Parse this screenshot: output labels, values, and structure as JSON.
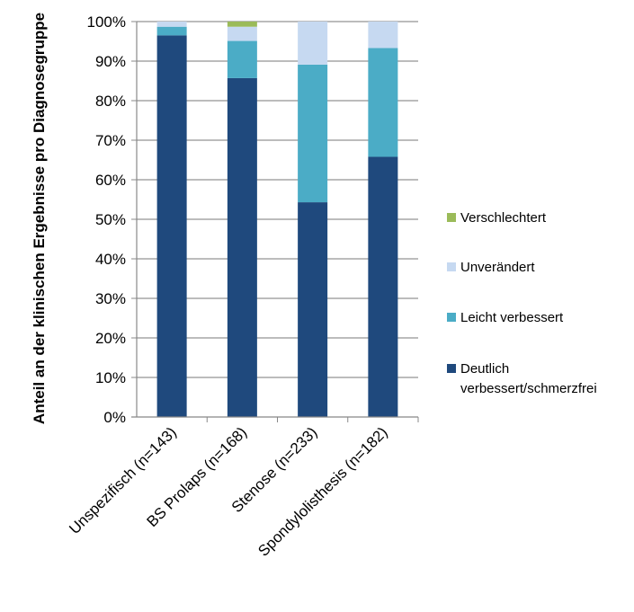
{
  "chart_data": {
    "type": "bar",
    "stacked": true,
    "categories": [
      "Unspezifisch (n=143)",
      "BS Prolaps (n=168)",
      "Stenose (n=233)",
      "Spondylolisthesis (n=182)"
    ],
    "series": [
      {
        "name": "Deutlich verbessert/schmerzfrei",
        "color": "#1F497D",
        "values": [
          96.5,
          85.7,
          54.3,
          65.8
        ]
      },
      {
        "name": "Leicht verbessert",
        "color": "#4BACC6",
        "values": [
          2.2,
          9.4,
          34.8,
          27.5
        ]
      },
      {
        "name": "Unverändert",
        "color": "#C6D9F1",
        "values": [
          1.3,
          3.6,
          10.9,
          6.7
        ]
      },
      {
        "name": "Verschlechtert",
        "color": "#9BBB59",
        "values": [
          0,
          1.3,
          0,
          0
        ]
      }
    ],
    "legend_lines": {
      "Deutlich verbessert/schmerzfrei": [
        "Deutlich",
        "verbessert/schmerzfrei"
      ]
    },
    "ylabel": "Anteil an der klinischen Ergebnisse pro Diagnosegruppe",
    "xlabel": "",
    "ylim": [
      0,
      100
    ],
    "yticks": [
      "0%",
      "10%",
      "20%",
      "30%",
      "40%",
      "50%",
      "60%",
      "70%",
      "80%",
      "90%",
      "100%"
    ],
    "grid": true,
    "legend_position": "right"
  }
}
